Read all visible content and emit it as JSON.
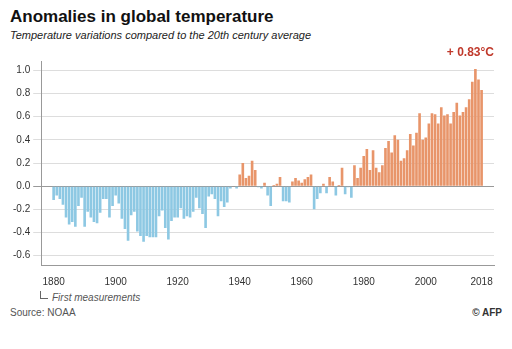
{
  "chart_data": {
    "type": "bar",
    "title": "Anomalies in global temperature",
    "subtitle": "Temperature variations compared to the 20th century average",
    "annotation": "+ 0.83°C",
    "note": "First measurements",
    "source": "Source: NOAA",
    "copyright": "© AFP",
    "x": [
      1880,
      1881,
      1882,
      1883,
      1884,
      1885,
      1886,
      1887,
      1888,
      1889,
      1890,
      1891,
      1892,
      1893,
      1894,
      1895,
      1896,
      1897,
      1898,
      1899,
      1900,
      1901,
      1902,
      1903,
      1904,
      1905,
      1906,
      1907,
      1908,
      1909,
      1910,
      1911,
      1912,
      1913,
      1914,
      1915,
      1916,
      1917,
      1918,
      1919,
      1920,
      1921,
      1922,
      1923,
      1924,
      1925,
      1926,
      1927,
      1928,
      1929,
      1930,
      1931,
      1932,
      1933,
      1934,
      1935,
      1936,
      1937,
      1938,
      1939,
      1940,
      1941,
      1942,
      1943,
      1944,
      1945,
      1946,
      1947,
      1948,
      1949,
      1950,
      1951,
      1952,
      1953,
      1954,
      1955,
      1956,
      1957,
      1958,
      1959,
      1960,
      1961,
      1962,
      1963,
      1964,
      1965,
      1966,
      1967,
      1968,
      1969,
      1970,
      1971,
      1972,
      1973,
      1974,
      1975,
      1976,
      1977,
      1978,
      1979,
      1980,
      1981,
      1982,
      1983,
      1984,
      1985,
      1986,
      1987,
      1988,
      1989,
      1990,
      1991,
      1992,
      1993,
      1994,
      1995,
      1996,
      1997,
      1998,
      1999,
      2000,
      2001,
      2002,
      2003,
      2004,
      2005,
      2006,
      2007,
      2008,
      2009,
      2010,
      2011,
      2012,
      2013,
      2014,
      2015,
      2016,
      2017,
      2018
    ],
    "values": [
      -0.12,
      -0.08,
      -0.11,
      -0.16,
      -0.27,
      -0.33,
      -0.31,
      -0.35,
      -0.17,
      -0.1,
      -0.35,
      -0.22,
      -0.27,
      -0.31,
      -0.32,
      -0.23,
      -0.11,
      -0.11,
      -0.27,
      -0.17,
      -0.08,
      -0.15,
      -0.28,
      -0.37,
      -0.47,
      -0.25,
      -0.22,
      -0.39,
      -0.43,
      -0.48,
      -0.43,
      -0.44,
      -0.44,
      -0.44,
      -0.26,
      -0.21,
      -0.36,
      -0.46,
      -0.3,
      -0.27,
      -0.27,
      -0.19,
      -0.28,
      -0.26,
      -0.27,
      -0.22,
      -0.1,
      -0.19,
      -0.24,
      -0.36,
      -0.09,
      -0.07,
      -0.11,
      -0.26,
      -0.13,
      -0.18,
      -0.14,
      -0.02,
      -0.0,
      -0.02,
      0.1,
      0.2,
      0.07,
      0.09,
      0.22,
      0.14,
      -0.01,
      -0.02,
      0.03,
      -0.08,
      -0.17,
      0.01,
      0.02,
      0.08,
      -0.13,
      -0.13,
      -0.14,
      0.04,
      0.07,
      0.05,
      0.03,
      0.06,
      0.08,
      0.1,
      -0.2,
      -0.11,
      -0.06,
      0.02,
      -0.06,
      0.08,
      0.04,
      -0.08,
      0.01,
      0.16,
      -0.07,
      -0.01,
      -0.1,
      0.18,
      0.07,
      0.16,
      0.26,
      0.32,
      0.14,
      0.31,
      0.16,
      0.12,
      0.18,
      0.33,
      0.39,
      0.29,
      0.44,
      0.4,
      0.22,
      0.24,
      0.31,
      0.45,
      0.35,
      0.46,
      0.63,
      0.4,
      0.42,
      0.54,
      0.63,
      0.62,
      0.54,
      0.68,
      0.61,
      0.62,
      0.54,
      0.64,
      0.72,
      0.61,
      0.64,
      0.68,
      0.75,
      0.9,
      1.01,
      0.92,
      0.83
    ],
    "colors": [
      "#8DC8E3",
      "#8DC8E3",
      "#8DC8E3",
      "#8DC8E3",
      "#8DC8E3",
      "#8DC8E3",
      "#8DC8E3",
      "#8DC8E3",
      "#8DC8E3",
      "#8DC8E3",
      "#8DC8E3",
      "#8DC8E3",
      "#8DC8E3",
      "#8DC8E3",
      "#8DC8E3",
      "#8DC8E3",
      "#8DC8E3",
      "#8DC8E3",
      "#8DC8E3",
      "#8DC8E3",
      "#8DC8E3",
      "#8DC8E3",
      "#8DC8E3",
      "#8DC8E3",
      "#8DC8E3",
      "#8DC8E3",
      "#8DC8E3",
      "#8DC8E3",
      "#8DC8E3",
      "#8DC8E3",
      "#8DC8E3",
      "#8DC8E3",
      "#8DC8E3",
      "#8DC8E3",
      "#8DC8E3",
      "#8DC8E3",
      "#8DC8E3",
      "#8DC8E3",
      "#8DC8E3",
      "#8DC8E3",
      "#8DC8E3",
      "#8DC8E3",
      "#8DC8E3",
      "#8DC8E3",
      "#8DC8E3",
      "#8DC8E3",
      "#8DC8E3",
      "#8DC8E3",
      "#8DC8E3",
      "#8DC8E3",
      "#8DC8E3",
      "#8DC8E3",
      "#8DC8E3",
      "#8DC8E3",
      "#8DC8E3",
      "#8DC8E3",
      "#8DC8E3",
      "#8DC8E3",
      "#E8956A",
      "#8DC8E3",
      "#E8956A",
      "#E8956A",
      "#E8956A",
      "#E8956A",
      "#E8956A",
      "#E8956A",
      "#8DC8E3",
      "#8DC8E3",
      "#E8956A",
      "#8DC8E3",
      "#8DC8E3",
      "#E8956A",
      "#E8956A",
      "#E8956A",
      "#8DC8E3",
      "#8DC8E3",
      "#8DC8E3",
      "#E8956A",
      "#E8956A",
      "#E8956A",
      "#E8956A",
      "#E8956A",
      "#E8956A",
      "#E8956A",
      "#8DC8E3",
      "#8DC8E3",
      "#8DC8E3",
      "#E8956A",
      "#8DC8E3",
      "#E8956A",
      "#E8956A",
      "#8DC8E3",
      "#E8956A",
      "#E8956A",
      "#8DC8E3",
      "#8DC8E3",
      "#8DC8E3",
      "#E8956A",
      "#E8956A",
      "#E8956A",
      "#E8956A",
      "#E8956A",
      "#E8956A",
      "#E8956A",
      "#E8956A",
      "#E8956A",
      "#E8956A",
      "#E8956A",
      "#E8956A",
      "#E8956A",
      "#E8956A",
      "#E8956A",
      "#E8956A",
      "#E8956A",
      "#E8956A",
      "#E8956A",
      "#E8956A",
      "#E8956A",
      "#E8956A",
      "#E8956A",
      "#E8956A",
      "#E8956A",
      "#E8956A",
      "#E8956A",
      "#E8956A",
      "#E8956A",
      "#E8956A",
      "#E8956A",
      "#E8956A",
      "#E8956A",
      "#E8956A",
      "#E8956A",
      "#E8956A",
      "#E8956A",
      "#E8956A",
      "#E8956A",
      "#E8956A",
      "#E8956A",
      "#E8956A"
    ],
    "xlim": [
      1876,
      2022
    ],
    "xticks": [
      1880,
      1900,
      1920,
      1940,
      1960,
      1980,
      2000,
      2018
    ],
    "ylim": [
      -0.68,
      1.08
    ],
    "yticks": [
      -0.6,
      -0.4,
      -0.2,
      {
        "value": 0.0,
        "label": "0.0"
      },
      0.2,
      0.4,
      0.6,
      0.8,
      {
        "value": 1.0,
        "label": "1.0"
      }
    ],
    "grid": true
  }
}
